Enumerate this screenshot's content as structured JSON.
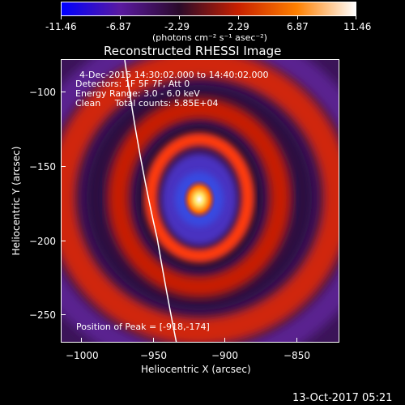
{
  "colorbar": {
    "tick_labels": [
      "-11.46",
      "-6.87",
      "-2.29",
      "2.29",
      "6.87",
      "11.46"
    ],
    "units_label": "(photons cm⁻² s⁻¹ asec⁻²)",
    "colors": [
      "#0000ff",
      "#5a1aa0",
      "#2a0a2a",
      "#c82000",
      "#ff8000",
      "#ffffff"
    ]
  },
  "plot": {
    "title": "Reconstructed RHESSI Image",
    "x_label": "Heliocentric X (arcsec)",
    "y_label": "Heliocentric Y (arcsec)",
    "x_ticks": [
      "−1000",
      "−950",
      "−900",
      "−850"
    ],
    "y_ticks": [
      "−100",
      "−150",
      "−200",
      "−250"
    ],
    "x_range": [
      -1010,
      -817
    ],
    "y_range": [
      -269,
      -81
    ]
  },
  "annotations": {
    "time_range": "4-Dec-2015 14:30:02.000 to 14:40:02.000",
    "detectors": "Detectors: 1F 5F 7F, Att 0",
    "energy_range": "Energy Range: 3.0 - 6.0 keV",
    "method": "Clean     Total counts: 5.85E+04",
    "peak": "Position of Peak = [-918,-174]"
  },
  "footer": {
    "timestamp": "13-Oct-2017 05:21"
  }
}
